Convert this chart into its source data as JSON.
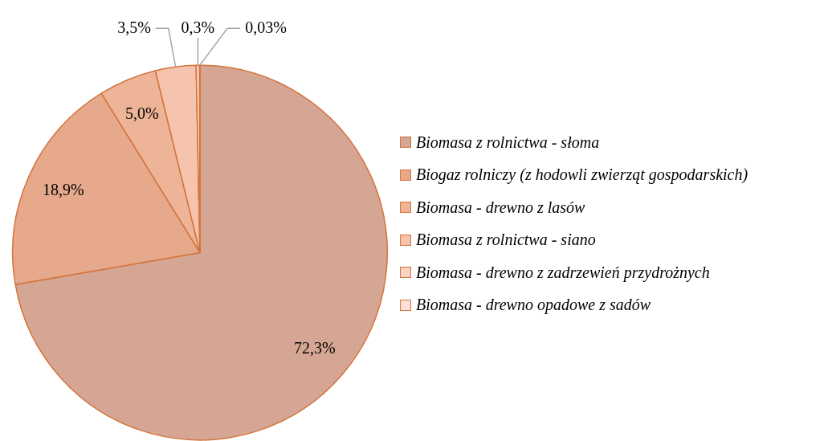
{
  "chart_data": {
    "type": "pie",
    "categories": [
      "Biomasa z rolnictwa - słoma",
      "Biogaz rolniczy (z hodowli zwierząt gospodarskich)",
      "Biomasa - drewno z lasów",
      "Biomasa z rolnictwa - siano",
      "Biomasa - drewno z zadrzewień przydrożnych",
      "Biomasa - drewno opadowe z sadów"
    ],
    "values": [
      72.3,
      18.9,
      5.0,
      3.5,
      0.3,
      0.03
    ],
    "value_labels": [
      "72,3%",
      "18,9%",
      "5,0%",
      "3,5%",
      "0,3%",
      "0,03%"
    ],
    "colors": [
      "#d5a693",
      "#e6a98c",
      "#eeb498",
      "#f6c3ae",
      "#f9d3c4",
      "#fbe2d8"
    ],
    "legend": "right"
  }
}
